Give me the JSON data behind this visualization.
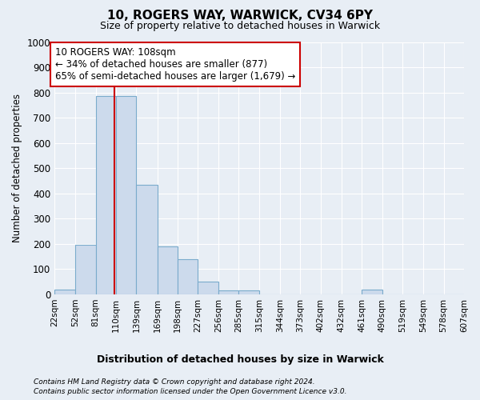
{
  "title1": "10, ROGERS WAY, WARWICK, CV34 6PY",
  "title2": "Size of property relative to detached houses in Warwick",
  "xlabel": "Distribution of detached houses by size in Warwick",
  "ylabel": "Number of detached properties",
  "bin_edges": [
    22,
    52,
    81,
    110,
    139,
    169,
    198,
    227,
    256,
    285,
    315,
    344,
    373,
    402,
    432,
    461,
    490,
    519,
    549,
    578,
    607
  ],
  "bar_heights": [
    20,
    195,
    785,
    785,
    435,
    190,
    140,
    50,
    15,
    15,
    0,
    0,
    0,
    0,
    0,
    20,
    0,
    0,
    0,
    0
  ],
  "bar_color": "#ccdaec",
  "bar_edge_color": "#7aabcc",
  "property_size": 108,
  "vline_color": "#cc0000",
  "annotation_text": "10 ROGERS WAY: 108sqm\n← 34% of detached houses are smaller (877)\n65% of semi-detached houses are larger (1,679) →",
  "annotation_box_color": "#ffffff",
  "annotation_box_edge_color": "#cc0000",
  "footer1": "Contains HM Land Registry data © Crown copyright and database right 2024.",
  "footer2": "Contains public sector information licensed under the Open Government Licence v3.0.",
  "background_color": "#e8eef5",
  "plot_background_color": "#e8eef5",
  "grid_color": "#ffffff",
  "ylim": [
    0,
    1000
  ],
  "yticks": [
    0,
    100,
    200,
    300,
    400,
    500,
    600,
    700,
    800,
    900,
    1000
  ]
}
